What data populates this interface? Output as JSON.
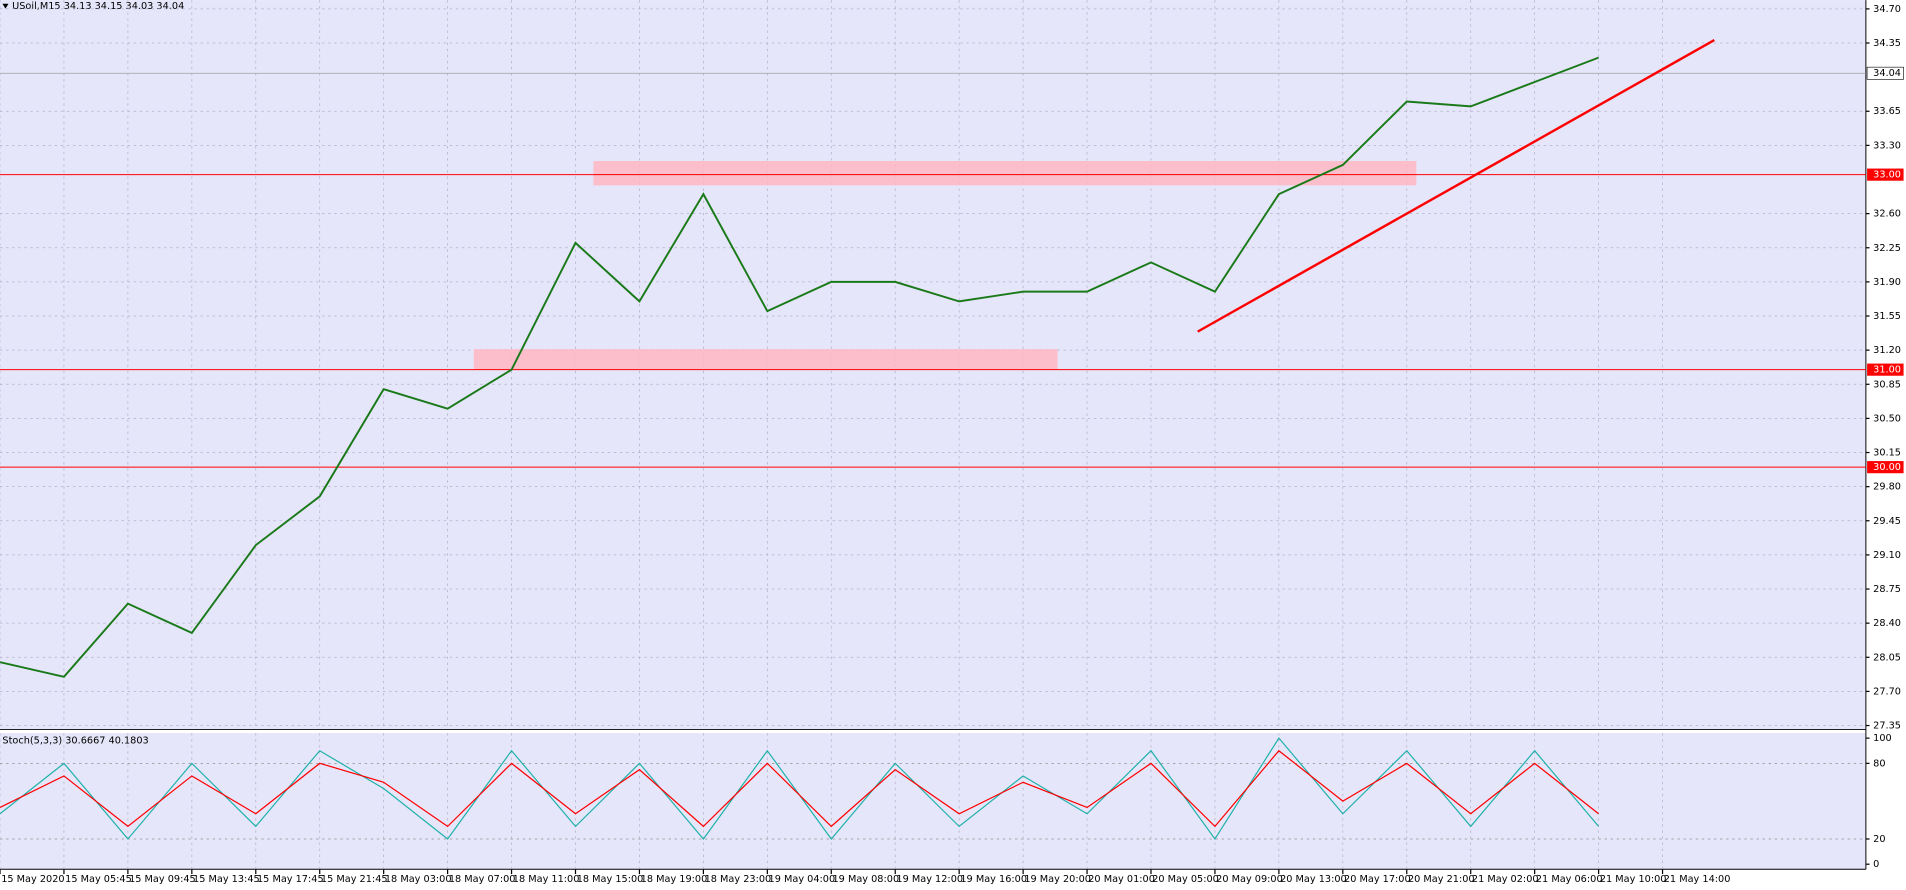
{
  "chart_data": [
    {
      "type": "line",
      "title": "USoil,M15 34.13 34.15 34.03 34.04",
      "categories": [
        "15 May 2020",
        "15 May 05:45",
        "15 May 09:45",
        "15 May 13:45",
        "15 May 17:45",
        "15 May 21:45",
        "18 May 03:00",
        "18 May 07:00",
        "18 May 11:00",
        "18 May 15:00",
        "18 May 19:00",
        "18 May 23:00",
        "19 May 04:00",
        "19 May 08:00",
        "19 May 12:00",
        "19 May 16:00",
        "19 May 20:00",
        "20 May 01:00",
        "20 May 05:00",
        "20 May 09:00",
        "20 May 13:00",
        "20 May 17:00",
        "20 May 21:00",
        "21 May 02:00",
        "21 May 06:00",
        "21 May 10:00",
        "21 May 14:00"
      ],
      "series": [
        {
          "color": "#1a7a1a",
          "values": [
            28.0,
            27.85,
            28.6,
            28.3,
            29.2,
            29.7,
            30.8,
            30.6,
            31.0,
            32.3,
            31.7,
            32.8,
            31.6,
            31.9,
            31.9,
            31.7,
            31.8,
            31.8,
            32.1,
            31.8,
            32.8,
            33.1,
            33.75,
            33.7,
            33.95,
            34.2,
            null
          ]
        }
      ],
      "xlim": [
        0,
        29.18
      ],
      "ylim": [
        27.31,
        34.79
      ],
      "yticks": [
        {
          "value": 34.7,
          "label": "34.70"
        },
        {
          "value": 34.35,
          "label": "34.35"
        },
        {
          "value": 33.65,
          "label": "33.65"
        },
        {
          "value": 33.3,
          "label": "33.30"
        },
        {
          "value": 32.6,
          "label": "32.60"
        },
        {
          "value": 32.25,
          "label": "32.25"
        },
        {
          "value": 31.9,
          "label": "31.90"
        },
        {
          "value": 31.55,
          "label": "31.55"
        },
        {
          "value": 31.2,
          "label": "31.20"
        },
        {
          "value": 30.85,
          "label": "30.85"
        },
        {
          "value": 30.5,
          "label": "30.50"
        },
        {
          "value": 30.15,
          "label": "30.15"
        },
        {
          "value": 29.8,
          "label": "29.80"
        },
        {
          "value": 29.45,
          "label": "29.45"
        },
        {
          "value": 29.1,
          "label": "29.10"
        },
        {
          "value": 28.75,
          "label": "28.75"
        },
        {
          "value": 28.4,
          "label": "28.40"
        },
        {
          "value": 28.05,
          "label": "28.05"
        },
        {
          "value": 27.7,
          "label": "27.70"
        },
        {
          "value": 27.35,
          "label": "27.35"
        }
      ],
      "grid": true,
      "levels": [
        {
          "value": 33,
          "label": "33.00"
        },
        {
          "value": 31,
          "label": "31.00"
        },
        {
          "value": 30,
          "label": "30.00"
        }
      ],
      "level_color": "#ff0000",
      "last_price": {
        "value": 34.04,
        "label": "34.04"
      },
      "zones": [
        {
          "x": [
            9.28,
            22.15
          ],
          "y": [
            32.89,
            33.14
          ]
        },
        {
          "x": [
            7.41,
            16.54
          ],
          "y": [
            31.0,
            31.21
          ]
        }
      ],
      "zone_color": "#ffb6c1",
      "trendline": {
        "x": [
          18.73,
          26.81
        ],
        "y": [
          31.39,
          34.38
        ],
        "color": "#ff0000"
      }
    },
    {
      "type": "line",
      "title": "Stoch(5,3,3) 30.6667 40.1803",
      "series": [
        {
          "color": "#20b2aa",
          "values": [
            40,
            80,
            20,
            80,
            30,
            90,
            60,
            20,
            90,
            30,
            80,
            20,
            90,
            20,
            80,
            30,
            70,
            40,
            90,
            20,
            100,
            40,
            90,
            30,
            90,
            30,
            null
          ]
        },
        {
          "color": "#ff0000",
          "values": [
            45,
            70,
            30,
            70,
            40,
            80,
            65,
            30,
            80,
            40,
            75,
            30,
            80,
            30,
            75,
            40,
            65,
            45,
            80,
            30,
            90,
            50,
            80,
            40,
            80,
            40,
            null
          ]
        }
      ],
      "ylim": [
        -4,
        104
      ],
      "yticks": [
        100,
        80,
        20,
        0
      ],
      "levels": [
        80,
        20
      ]
    }
  ]
}
